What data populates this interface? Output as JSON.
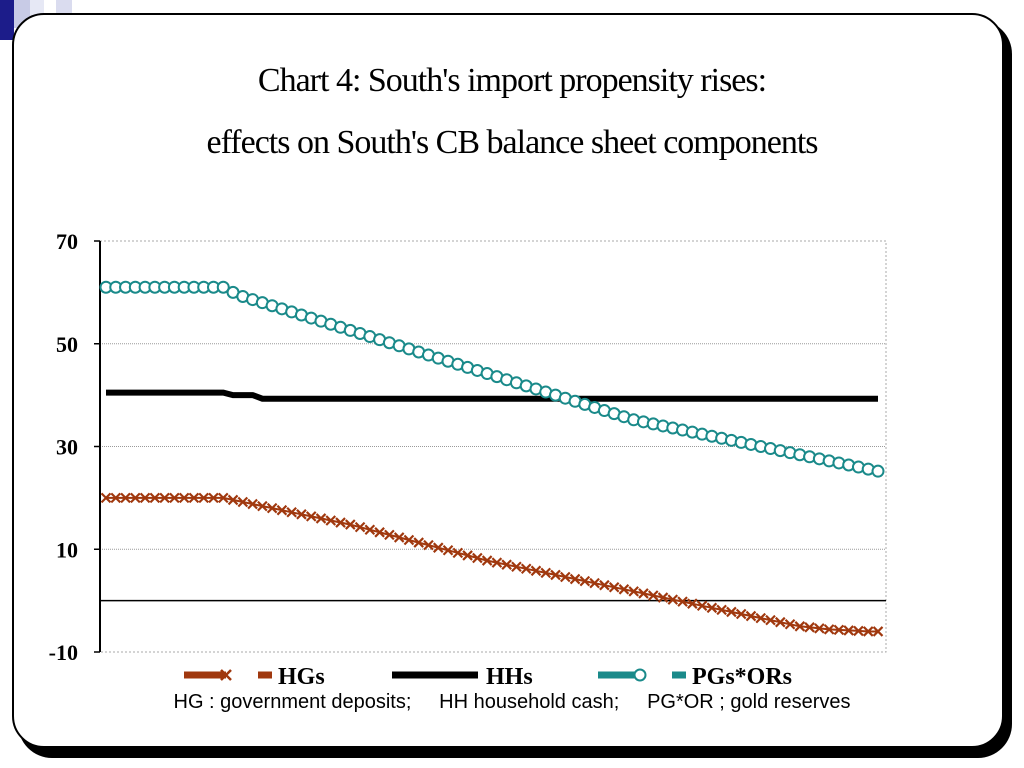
{
  "title_line1": "Chart 4: South's import propensity rises:",
  "title_line2": "effects on South's CB balance sheet components",
  "footnote": "HG : government deposits;     HH household cash;     PG*OR ; gold reserves",
  "chart_data": {
    "type": "line",
    "ylim": [
      -10,
      70
    ],
    "yticks": [
      70,
      50,
      30,
      10,
      -10
    ],
    "grid": true,
    "legend_position": "bottom",
    "n_points": 80,
    "series": [
      {
        "name": "HGs",
        "color": "#a0380e",
        "marker": "x",
        "values": [
          20,
          20,
          20,
          20,
          20,
          20,
          20,
          20,
          20,
          20,
          20,
          20,
          20,
          19.6,
          19.2,
          18.8,
          18.4,
          18.0,
          17.6,
          17.2,
          16.8,
          16.4,
          16.0,
          15.6,
          15.2,
          14.8,
          14.3,
          13.8,
          13.3,
          12.8,
          12.3,
          11.8,
          11.3,
          10.8,
          10.3,
          9.8,
          9.3,
          8.8,
          8.3,
          7.8,
          7.4,
          7.0,
          6.6,
          6.2,
          5.8,
          5.4,
          5.0,
          4.6,
          4.2,
          3.8,
          3.4,
          3.0,
          2.6,
          2.2,
          1.8,
          1.4,
          1.0,
          0.6,
          0.2,
          -0.2,
          -0.6,
          -1.0,
          -1.4,
          -1.8,
          -2.2,
          -2.6,
          -3.0,
          -3.4,
          -3.8,
          -4.2,
          -4.6,
          -5.0,
          -5.2,
          -5.4,
          -5.6,
          -5.7,
          -5.8,
          -5.9,
          -6.0,
          -6.0
        ]
      },
      {
        "name": "HHs",
        "color": "#000000",
        "marker": "none",
        "values": [
          40.5,
          40.5,
          40.5,
          40.5,
          40.5,
          40.5,
          40.5,
          40.5,
          40.5,
          40.5,
          40.5,
          40.5,
          40.5,
          40.0,
          40.0,
          40.0,
          39.3,
          39.3,
          39.3,
          39.3,
          39.3,
          39.3,
          39.3,
          39.3,
          39.3,
          39.3,
          39.3,
          39.3,
          39.3,
          39.3,
          39.3,
          39.3,
          39.3,
          39.3,
          39.3,
          39.3,
          39.3,
          39.3,
          39.3,
          39.3,
          39.3,
          39.3,
          39.3,
          39.3,
          39.3,
          39.3,
          39.3,
          39.3,
          39.3,
          39.3,
          39.3,
          39.3,
          39.3,
          39.3,
          39.3,
          39.3,
          39.3,
          39.3,
          39.3,
          39.3,
          39.3,
          39.3,
          39.3,
          39.3,
          39.3,
          39.3,
          39.3,
          39.3,
          39.3,
          39.3,
          39.3,
          39.3,
          39.3,
          39.3,
          39.3,
          39.3,
          39.3,
          39.3,
          39.3,
          39.3
        ]
      },
      {
        "name": "PGs*ORs",
        "color": "#1a8a8a",
        "marker": "o",
        "values": [
          61,
          61,
          61,
          61,
          61,
          61,
          61,
          61,
          61,
          61,
          61,
          61,
          61,
          60.0,
          59.2,
          58.6,
          58.0,
          57.4,
          56.8,
          56.2,
          55.6,
          55.0,
          54.4,
          53.8,
          53.2,
          52.6,
          52.0,
          51.4,
          50.8,
          50.2,
          49.6,
          49.0,
          48.4,
          47.8,
          47.2,
          46.6,
          46.0,
          45.4,
          44.8,
          44.2,
          43.6,
          43.0,
          42.4,
          41.8,
          41.2,
          40.6,
          40.0,
          39.4,
          38.8,
          38.2,
          37.6,
          37.0,
          36.4,
          35.8,
          35.2,
          34.8,
          34.4,
          34.0,
          33.6,
          33.2,
          32.8,
          32.4,
          32.0,
          31.6,
          31.2,
          30.8,
          30.4,
          30.0,
          29.6,
          29.2,
          28.8,
          28.4,
          28.0,
          27.6,
          27.2,
          26.8,
          26.4,
          26.0,
          25.6,
          25.2
        ]
      }
    ]
  }
}
